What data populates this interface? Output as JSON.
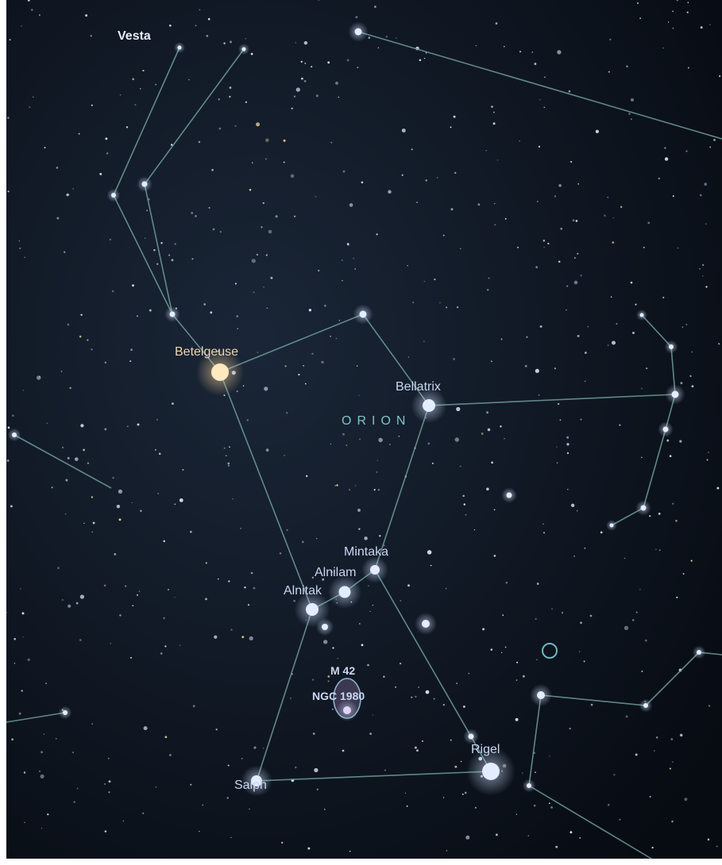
{
  "labels": {
    "vesta": "Vesta",
    "betelgeuse": "Betelgeuse",
    "bellatrix": "Bellatrix",
    "constellation": "ORION",
    "mintaka": "Mintaka",
    "alnilam": "Alnilam",
    "alnitak": "Alnitak",
    "m42": "M 42",
    "ngc": "NGC 1980",
    "rigel": "Rigel",
    "saiph": "Saiph"
  }
}
